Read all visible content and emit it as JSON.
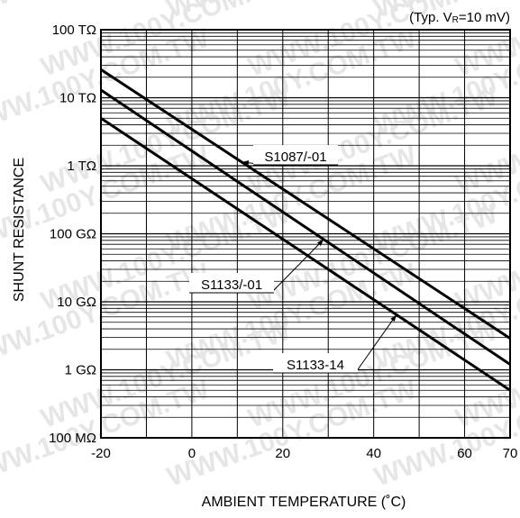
{
  "chart_data": {
    "type": "line",
    "title": "",
    "condition_note": "(Typ. V",
    "condition_note_sub": "R",
    "condition_note_tail": "=10 mV)",
    "xlabel": "AMBIENT TEMPERATURE (˚C)",
    "ylabel": "SHUNT RESISTANCE",
    "x_ticks": [
      "-20",
      "0",
      "20",
      "40",
      "60",
      "70"
    ],
    "x_tick_values": [
      -20,
      0,
      20,
      40,
      60,
      70
    ],
    "y_ticks": [
      "100 MΩ",
      "1 GΩ",
      "10 GΩ",
      "100 GΩ",
      "1 TΩ",
      "10 TΩ",
      "100 TΩ"
    ],
    "y_tick_values": [
      100000000.0,
      1000000000.0,
      10000000000.0,
      100000000000.0,
      1000000000000.0,
      10000000000000.0,
      100000000000000.0
    ],
    "xlim": [
      -20,
      70
    ],
    "ylim": [
      100000000.0,
      100000000000000.0
    ],
    "y_scale": "log",
    "grid": true,
    "series": [
      {
        "name": "S1087/-01",
        "x": [
          -20,
          70
        ],
        "y": [
          26000000000000.0,
          2900000000.0
        ]
      },
      {
        "name": "S1133/-01",
        "x": [
          -20,
          70
        ],
        "y": [
          13000000000000.0,
          1200000000.0
        ]
      },
      {
        "name": "S1133-14",
        "x": [
          -20,
          70
        ],
        "y": [
          5000000000000.0,
          500000000.0
        ]
      }
    ],
    "annotations": [
      {
        "text": "S1087/-01",
        "series": 0,
        "at_x": 11
      },
      {
        "text": "S1133/-01",
        "series": 1,
        "at_x": 29
      },
      {
        "text": "S1133-14",
        "series": 2,
        "at_x": 45
      }
    ],
    "watermark": "WWW.100Y.COM.TW"
  }
}
